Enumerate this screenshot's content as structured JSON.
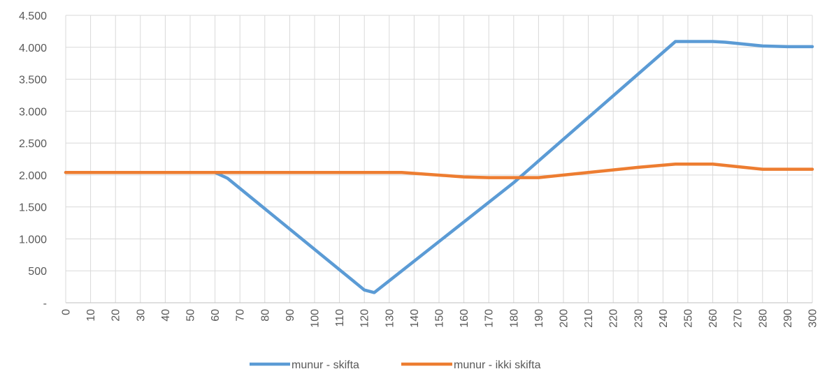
{
  "chart_data": {
    "type": "line",
    "title": "",
    "xlabel": "",
    "ylabel": "",
    "xlim": [
      0,
      300
    ],
    "ylim": [
      0,
      4500
    ],
    "x_ticks": [
      0,
      10,
      20,
      30,
      40,
      50,
      60,
      70,
      80,
      90,
      100,
      110,
      120,
      130,
      140,
      150,
      160,
      170,
      180,
      190,
      200,
      210,
      220,
      230,
      240,
      250,
      260,
      270,
      280,
      290,
      300
    ],
    "y_ticks": [
      {
        "value": 0,
        "label": "-"
      },
      {
        "value": 500,
        "label": "500"
      },
      {
        "value": 1000,
        "label": "1.000"
      },
      {
        "value": 1500,
        "label": "1.500"
      },
      {
        "value": 2000,
        "label": "2.000"
      },
      {
        "value": 2500,
        "label": "2.500"
      },
      {
        "value": 3000,
        "label": "3.000"
      },
      {
        "value": 3500,
        "label": "3.500"
      },
      {
        "value": 4000,
        "label": "4.000"
      },
      {
        "value": 4500,
        "label": "4.500"
      }
    ],
    "grid": true,
    "legend_position": "bottom",
    "series": [
      {
        "name": "munur - skifta",
        "color": "#5B9BD5",
        "points": [
          [
            0,
            2040
          ],
          [
            60,
            2040
          ],
          [
            65,
            1950
          ],
          [
            120,
            200
          ],
          [
            124,
            160
          ],
          [
            180,
            1880
          ],
          [
            190,
            2220
          ],
          [
            245,
            4090
          ],
          [
            260,
            4090
          ],
          [
            265,
            4080
          ],
          [
            280,
            4020
          ],
          [
            290,
            4010
          ],
          [
            300,
            4010
          ]
        ]
      },
      {
        "name": "munur - ikki skifta",
        "color": "#ED7D31",
        "points": [
          [
            0,
            2040
          ],
          [
            135,
            2040
          ],
          [
            160,
            1970
          ],
          [
            170,
            1960
          ],
          [
            190,
            1960
          ],
          [
            210,
            2040
          ],
          [
            230,
            2120
          ],
          [
            245,
            2170
          ],
          [
            260,
            2170
          ],
          [
            280,
            2090
          ],
          [
            300,
            2090
          ]
        ]
      }
    ]
  }
}
